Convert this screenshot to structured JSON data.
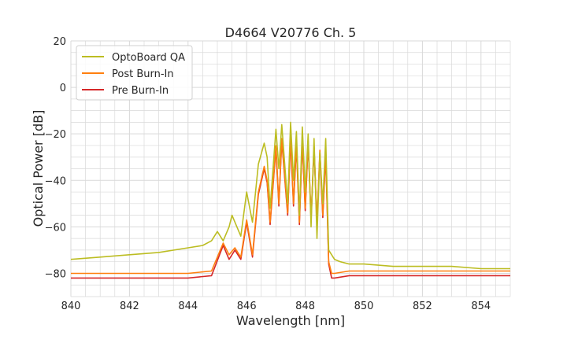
{
  "chart_data": {
    "type": "line",
    "title": "D4664 V20776 Ch. 5",
    "xlabel": "Wavelength [nm]",
    "ylabel": "Optical Power [dB]",
    "xlim": [
      840,
      855
    ],
    "ylim": [
      -90,
      20
    ],
    "xticks": [
      840,
      842,
      844,
      846,
      848,
      850,
      852,
      854
    ],
    "yticks": [
      20,
      0,
      -20,
      -40,
      -60,
      -80
    ],
    "xtick_labels": [
      "840",
      "842",
      "844",
      "846",
      "848",
      "850",
      "852",
      "854"
    ],
    "ytick_labels": [
      "20",
      "0",
      "−20",
      "−40",
      "−60",
      "−80"
    ],
    "grid": true,
    "legend_position": "top-left",
    "series": [
      {
        "name": "OptoBoard QA",
        "color": "#bcbd22",
        "x": [
          840.0,
          841.0,
          842.0,
          843.0,
          844.0,
          844.5,
          844.8,
          845.0,
          845.2,
          845.4,
          845.5,
          845.8,
          846.0,
          846.2,
          846.4,
          846.6,
          846.7,
          846.8,
          847.0,
          847.1,
          847.2,
          847.4,
          847.5,
          847.6,
          847.7,
          847.8,
          847.9,
          848.0,
          848.1,
          848.2,
          848.3,
          848.4,
          848.5,
          848.6,
          848.7,
          848.8,
          848.9,
          849.0,
          849.2,
          849.5,
          850.0,
          851.0,
          852.0,
          853.0,
          854.0,
          855.0
        ],
        "y": [
          -74,
          -73,
          -72,
          -71,
          -69,
          -68,
          -66,
          -62,
          -66,
          -60,
          -55,
          -64,
          -45,
          -58,
          -33,
          -24,
          -30,
          -52,
          -18,
          -35,
          -16,
          -50,
          -15,
          -40,
          -19,
          -55,
          -17,
          -45,
          -20,
          -60,
          -22,
          -65,
          -28,
          -50,
          -22,
          -70,
          -72,
          -74,
          -75,
          -76,
          -76,
          -77,
          -77,
          -77,
          -78,
          -78
        ]
      },
      {
        "name": "Post Burn-In",
        "color": "#ff7f0e",
        "x": [
          840.0,
          841.0,
          842.0,
          843.0,
          844.0,
          844.8,
          845.2,
          845.4,
          845.6,
          845.8,
          846.0,
          846.2,
          846.4,
          846.6,
          846.7,
          846.8,
          847.0,
          847.1,
          847.2,
          847.4,
          847.5,
          847.6,
          847.7,
          847.8,
          847.9,
          848.0,
          848.1,
          848.2,
          848.3,
          848.4,
          848.5,
          848.6,
          848.7,
          848.8,
          848.9,
          849.0,
          849.5,
          850.0,
          851.0,
          852.0,
          853.0,
          854.0,
          855.0
        ],
        "y": [
          -80,
          -80,
          -80,
          -80,
          -80,
          -79,
          -67,
          -72,
          -69,
          -73,
          -57,
          -72,
          -45,
          -34,
          -40,
          -58,
          -25,
          -50,
          -22,
          -54,
          -21,
          -50,
          -24,
          -58,
          -22,
          -52,
          -23,
          -56,
          -25,
          -58,
          -27,
          -55,
          -28,
          -75,
          -80,
          -80,
          -79,
          -79,
          -79,
          -79,
          -79,
          -79,
          -79
        ]
      },
      {
        "name": "Pre Burn-In",
        "color": "#d62728",
        "x": [
          840.0,
          841.0,
          842.0,
          843.0,
          844.0,
          844.8,
          845.2,
          845.4,
          845.6,
          845.8,
          846.0,
          846.2,
          846.4,
          846.6,
          846.7,
          846.8,
          847.0,
          847.1,
          847.2,
          847.4,
          847.5,
          847.6,
          847.7,
          847.8,
          847.9,
          848.0,
          848.1,
          848.2,
          848.3,
          848.4,
          848.5,
          848.6,
          848.7,
          848.8,
          848.9,
          849.0,
          849.5,
          850.0,
          851.0,
          852.0,
          853.0,
          854.0,
          855.0
        ],
        "y": [
          -82,
          -82,
          -82,
          -82,
          -82,
          -81,
          -68,
          -74,
          -70,
          -74,
          -58,
          -73,
          -46,
          -35,
          -41,
          -59,
          -26,
          -51,
          -23,
          -55,
          -22,
          -51,
          -25,
          -59,
          -23,
          -53,
          -24,
          -57,
          -26,
          -59,
          -28,
          -56,
          -29,
          -76,
          -82,
          -82,
          -81,
          -81,
          -81,
          -81,
          -81,
          -81,
          -81
        ]
      }
    ]
  }
}
